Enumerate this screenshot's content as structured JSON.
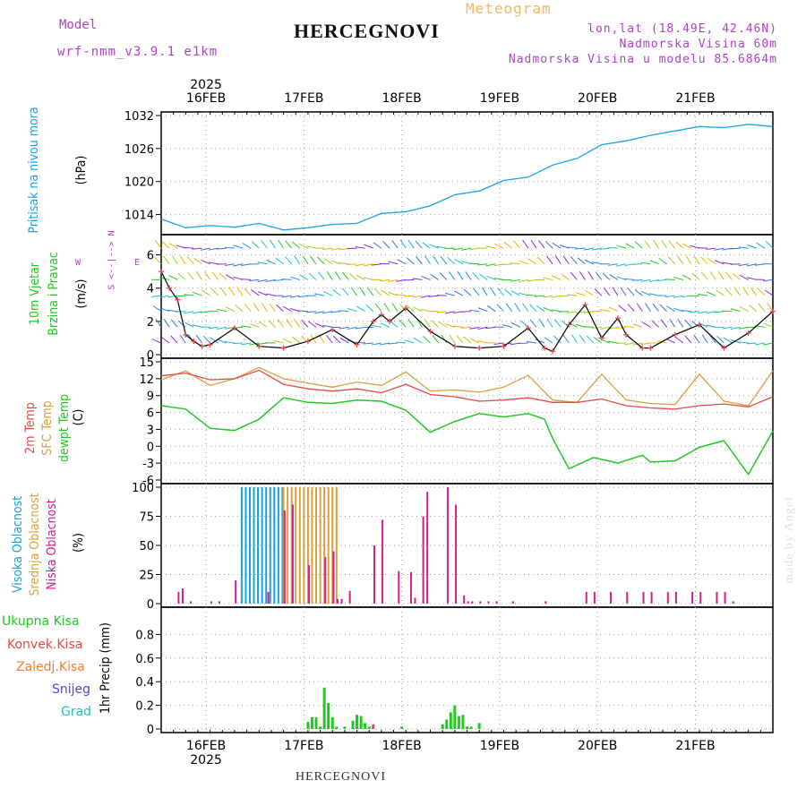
{
  "header": {
    "model_label": "Model",
    "model_name": "wrf-nmm_v3.9.1  e1km",
    "title": "HERCEGNOVI",
    "meteogram": "Meteogram",
    "lonlat": "lon,lat (18.49E, 42.46N)",
    "altitude": "Nadmorska Visina 60m",
    "model_altitude": "Nadmorska Visina u modelu 85.6864m"
  },
  "footer": {
    "station": "HERCEGNOVI",
    "credit": "made by Angel"
  },
  "colors": {
    "pressure": "#1aa3e8",
    "temp2m": "#e84848",
    "sfc": "#d8a040",
    "dew": "#22c822",
    "high_cloud": "#19a0e0",
    "mid_cloud": "#d8a040",
    "low_cloud": "#d0208a",
    "precip_total": "#22c822",
    "precip_conv": "#e84848",
    "precip_frozen": "#f08030",
    "snow": "#4848e0",
    "hail": "#20c0c0",
    "accent": "#b040c8",
    "grid": "#a0a0a0"
  },
  "time_axis": {
    "day_labels": [
      "16FEB",
      "17FEB",
      "18FEB",
      "19FEB",
      "20FEB",
      "21FEB"
    ],
    "year": "2025",
    "start": "2025-02-15T13:00",
    "end": "2025-02-21T12:00"
  },
  "panels": {
    "pressure": {
      "label": "Pritisak na nivou mora",
      "unit": "(hPa)"
    },
    "wind": {
      "label1": "10m Vjetar",
      "label2": "Brzina i Pravac",
      "unit": "(m/s)",
      "compass_ns": "S <--|--> N",
      "compass_w": "W",
      "compass_e": "E"
    },
    "temp": {
      "label1": "2m Temp",
      "label2": "SFC Temp",
      "label3": "dewpt Temp",
      "unit": "(C)"
    },
    "cloud": {
      "label1": "Visoka Oblacnost",
      "label2": "Srednja Oblacnost",
      "label3": "Niska Oblacnost",
      "unit": "(%)"
    },
    "precip": {
      "legend": [
        "Ukupna Kisa",
        "Konvek.Kisa",
        "Zaledj.Kisa",
        "Snijeg",
        "Grad"
      ],
      "unit": "1hr Precip (mm)"
    }
  },
  "chart_data": [
    {
      "type": "line",
      "name": "pressure",
      "ylim": [
        1011,
        1032
      ],
      "yticks": [
        1014,
        1020,
        1026,
        1032
      ],
      "series": [
        {
          "x": [
            0,
            6,
            12,
            18,
            24,
            30,
            36,
            42,
            48,
            54,
            60,
            66,
            72,
            78,
            84,
            90,
            96,
            102,
            108,
            114,
            120,
            126,
            132,
            138,
            144,
            150
          ],
          "values": [
            1013.2,
            1011.6,
            1012.0,
            1011.7,
            1012.4,
            1011.2,
            1011.6,
            1012.2,
            1012.4,
            1014.2,
            1014.5,
            1015.6,
            1017.6,
            1018.3,
            1020.2,
            1020.8,
            1023.0,
            1024.2,
            1026.7,
            1027.4,
            1028.4,
            1029.2,
            1030.0,
            1029.8,
            1030.4,
            1030.0
          ]
        }
      ]
    },
    {
      "type": "line",
      "name": "wind_speed",
      "ylim": [
        0,
        7
      ],
      "yticks": [
        0,
        2,
        4,
        6
      ],
      "series": [
        {
          "x": [
            0,
            2,
            4,
            6,
            8,
            10,
            12,
            18,
            24,
            30,
            36,
            42,
            48,
            52,
            54,
            56,
            60,
            66,
            72,
            78,
            84,
            90,
            94,
            96,
            100,
            104,
            108,
            112,
            114,
            118,
            120,
            126,
            132,
            138,
            144,
            150
          ],
          "values": [
            5.0,
            4.0,
            3.3,
            1.2,
            0.8,
            0.5,
            0.6,
            1.6,
            0.5,
            0.4,
            0.8,
            1.5,
            0.6,
            2.0,
            2.4,
            2.0,
            2.8,
            1.4,
            0.5,
            0.4,
            0.5,
            1.6,
            0.4,
            0.2,
            1.8,
            3.0,
            1.0,
            2.2,
            1.2,
            0.4,
            0.4,
            1.2,
            1.8,
            0.4,
            1.3,
            2.6
          ]
        }
      ]
    },
    {
      "type": "line",
      "name": "temperature",
      "ylim": [
        -6,
        15
      ],
      "yticks": [
        -6,
        -3,
        0,
        3,
        6,
        9,
        12,
        15
      ],
      "series": [
        {
          "name": "2m Temp",
          "x": [
            0,
            6,
            12,
            18,
            24,
            30,
            36,
            42,
            48,
            54,
            60,
            66,
            72,
            78,
            84,
            90,
            96,
            102,
            108,
            114,
            120,
            126,
            132,
            138,
            144,
            150
          ],
          "values": [
            12.5,
            13.0,
            11.8,
            12.0,
            13.5,
            11.0,
            10.2,
            9.8,
            10.2,
            9.5,
            11.0,
            9.2,
            8.8,
            8.0,
            8.2,
            8.6,
            7.8,
            7.8,
            8.4,
            7.2,
            6.8,
            6.6,
            7.2,
            7.5,
            7.0,
            8.8
          ]
        },
        {
          "name": "SFC Temp",
          "x": [
            0,
            6,
            12,
            18,
            24,
            30,
            36,
            42,
            48,
            54,
            60,
            66,
            72,
            78,
            84,
            90,
            96,
            102,
            108,
            114,
            120,
            126,
            132,
            138,
            144,
            150
          ],
          "values": [
            11.8,
            13.4,
            10.8,
            12.0,
            14.0,
            12.0,
            11.2,
            10.5,
            11.4,
            10.8,
            13.2,
            9.8,
            10.0,
            9.6,
            10.5,
            12.6,
            8.2,
            7.8,
            12.8,
            8.2,
            7.6,
            7.4,
            12.8,
            8.0,
            7.2,
            13.4
          ]
        },
        {
          "name": "dewpt Temp",
          "x": [
            0,
            6,
            12,
            18,
            24,
            30,
            36,
            42,
            48,
            54,
            60,
            66,
            72,
            78,
            84,
            90,
            94,
            96,
            100,
            106,
            112,
            118,
            120,
            126,
            132,
            138,
            144,
            150
          ],
          "values": [
            7.2,
            6.6,
            3.2,
            2.8,
            4.8,
            8.6,
            7.8,
            7.6,
            8.2,
            8.0,
            6.4,
            2.5,
            4.4,
            5.8,
            5.2,
            5.8,
            4.8,
            1.4,
            -4.0,
            -2.0,
            -3.0,
            -1.6,
            -2.8,
            -2.6,
            -0.2,
            1.0,
            -5.0,
            2.7
          ]
        }
      ]
    },
    {
      "type": "bar",
      "name": "cloud_cover",
      "ylim": [
        0,
        100
      ],
      "yticks": [
        0,
        25,
        50,
        75,
        100
      ],
      "series": [
        {
          "name": "Visoka Oblacnost",
          "x": [
            20,
            21,
            22,
            23,
            24,
            25,
            26,
            27,
            28,
            29,
            30
          ],
          "values": [
            100,
            100,
            100,
            100,
            100,
            100,
            100,
            100,
            100,
            100,
            100
          ]
        },
        {
          "name": "Srednja Oblacnost",
          "x": [
            30,
            31,
            32,
            33,
            34,
            35,
            36,
            37,
            38,
            39,
            40,
            41,
            42,
            43
          ],
          "values": [
            100,
            100,
            100,
            100,
            100,
            100,
            100,
            100,
            100,
            100,
            100,
            100,
            100,
            100
          ]
        },
        {
          "name": "Niska Oblacnost",
          "x": [
            4,
            5,
            7,
            12,
            14,
            18,
            26,
            30,
            32,
            36,
            40,
            42,
            43,
            44,
            46,
            52,
            54,
            58,
            61,
            62,
            64,
            65,
            70,
            72,
            74,
            75,
            76,
            78,
            80,
            82,
            86,
            94,
            104,
            106,
            110,
            114,
            118,
            120,
            124,
            126,
            130,
            132,
            136,
            138,
            140
          ],
          "values": [
            10,
            13,
            2,
            2,
            2,
            20,
            10,
            80,
            85,
            33,
            40,
            45,
            4,
            4,
            11,
            50,
            72,
            28,
            27,
            5,
            75,
            96,
            100,
            85,
            7,
            2,
            2,
            2,
            2,
            2,
            2,
            2,
            10,
            10,
            10,
            10,
            10,
            10,
            10,
            10,
            10,
            10,
            10,
            10,
            2
          ]
        }
      ]
    },
    {
      "type": "bar",
      "name": "precipitation",
      "ylim": [
        0,
        1
      ],
      "yticks": [
        0,
        0.2,
        0.4,
        0.6,
        0.8
      ],
      "series": [
        {
          "name": "Ukupna Kisa",
          "x": [
            36,
            37,
            38,
            39,
            40,
            41,
            42,
            43,
            45,
            47,
            48,
            49,
            50,
            51,
            59,
            69,
            70,
            71,
            72,
            73,
            74,
            75,
            76,
            78
          ],
          "values": [
            0.06,
            0.1,
            0.1,
            0.02,
            0.35,
            0.22,
            0.1,
            0.02,
            0.02,
            0.07,
            0.12,
            0.11,
            0.05,
            0.02,
            0.02,
            0.04,
            0.08,
            0.14,
            0.2,
            0.11,
            0.12,
            0.02,
            0.02,
            0.05
          ]
        },
        {
          "name": "Konvek.Kisa",
          "x": [
            52
          ],
          "values": [
            0.04
          ]
        }
      ]
    }
  ]
}
